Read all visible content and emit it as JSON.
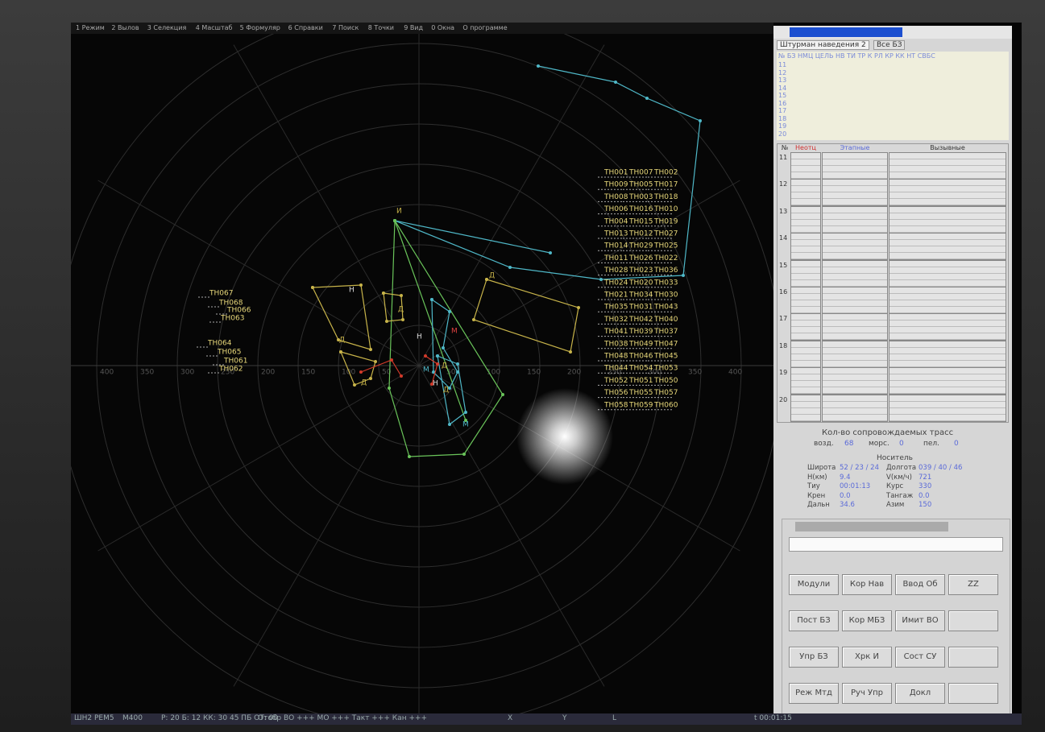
{
  "menu": [
    "1 Режим",
    "2 Вылов",
    "3 Селекция",
    "4 Масштаб",
    "5 Формуляр",
    "6 Справки",
    "7 Поиск",
    "8 Точки",
    "9 Вид",
    "0 Окна",
    "О программе"
  ],
  "radar": {
    "range_labels": [
      "400",
      "350",
      "300",
      "250",
      "200",
      "150",
      "100",
      "50"
    ],
    "track_table": [
      [
        "ТН001",
        "ТН007",
        "ТН002"
      ],
      [
        "ТН009",
        "ТН005",
        "ТН017"
      ],
      [
        "ТН008",
        "ТН003",
        "ТН018"
      ],
      [
        "ТН006",
        "ТН016",
        "ТН010"
      ],
      [
        "ТН004",
        "ТН015",
        "ТН019"
      ],
      [
        "ТН013",
        "ТН012",
        "ТН027"
      ],
      [
        "ТН014",
        "ТН029",
        "ТН025"
      ],
      [
        "ТН011",
        "ТН026",
        "ТН022"
      ],
      [
        "ТН028",
        "ТН023",
        "ТН036"
      ],
      [
        "ТН024",
        "ТН020",
        "ТН033"
      ],
      [
        "ТН021",
        "ТН034",
        "ТН030"
      ],
      [
        "ТН035",
        "ТН031",
        "ТН043"
      ],
      [
        "ТН032",
        "ТН042",
        "ТН040"
      ],
      [
        "ТН041",
        "ТН039",
        "ТН037"
      ],
      [
        "ТН038",
        "ТН049",
        "ТН047"
      ],
      [
        "ТН048",
        "ТН046",
        "ТН045"
      ],
      [
        "ТН044",
        "ТН054",
        "ТН053"
      ],
      [
        "ТН052",
        "ТН051",
        "ТН050"
      ],
      [
        "ТН056",
        "ТН055",
        "ТН057"
      ],
      [
        "ТН058",
        "ТН059",
        "ТН060"
      ]
    ],
    "left_tracks": [
      "ТН067",
      "ТН068",
      "ТН066",
      "ТН063",
      "ТН064",
      "ТН065",
      "ТН061",
      "ТН062"
    ],
    "markers": [
      "И",
      "Н",
      "Д",
      "Д",
      "Д",
      "Д",
      "Н",
      "М",
      "М",
      "Д",
      "Н",
      "М",
      "Д"
    ]
  },
  "panel": {
    "tabs": [
      "Штурман наведения 2",
      "Все БЗ"
    ],
    "list_header": "№ БЗ НМЦ ЦЕЛЬ НВ ТИ ТР К РЛ КР КК НТ СВБС",
    "list_rows": [
      "11",
      "12",
      "13",
      "14",
      "15",
      "16",
      "17",
      "18",
      "19",
      "20"
    ],
    "table_header": [
      "№",
      "Неотц",
      "Этапные",
      "Вызывные"
    ],
    "table_rows": [
      "11",
      "12",
      "13",
      "14",
      "15",
      "16",
      "17",
      "18",
      "19",
      "20"
    ],
    "tracks_title": "Кол-во сопровождаемых трасс",
    "tracks": [
      [
        "возд.",
        "68"
      ],
      [
        "морс.",
        "0"
      ],
      [
        "пел.",
        "0"
      ]
    ],
    "carrier_title": "Носитель",
    "carrier": [
      [
        "Широта",
        "52 / 23 / 24",
        "Долгота",
        "039 / 40 / 46"
      ],
      [
        "Н(км)",
        "9.4",
        "V(км/ч)",
        "721"
      ],
      [
        "Тиу",
        "00:01:13",
        "Курс",
        "330"
      ],
      [
        "Крен",
        "0.0",
        "Тангаж",
        "0.0"
      ],
      [
        "Дальн",
        "34.6",
        "Азим",
        "150"
      ]
    ],
    "buttons": [
      [
        "Модули",
        "Кор Нав",
        "Ввод Об",
        "ZZ"
      ],
      [
        "Пост БЗ",
        "Кор МБЗ",
        "Имит ВО"
      ],
      [
        "Упр БЗ",
        "Хрк И",
        "Сост СУ"
      ],
      [
        "Реж Мтд",
        "Руч Упр",
        "Докл"
      ]
    ]
  },
  "status": [
    "ШН2 РЕМ5",
    "М400",
    "Р: 20 Б: 12 КК: 30 45 ПБ ОТ: 00",
    "Отобр ВО +++ МО +++ Такт +++ Кан +++",
    "X",
    "Y",
    "L",
    "t 00:01:15"
  ]
}
